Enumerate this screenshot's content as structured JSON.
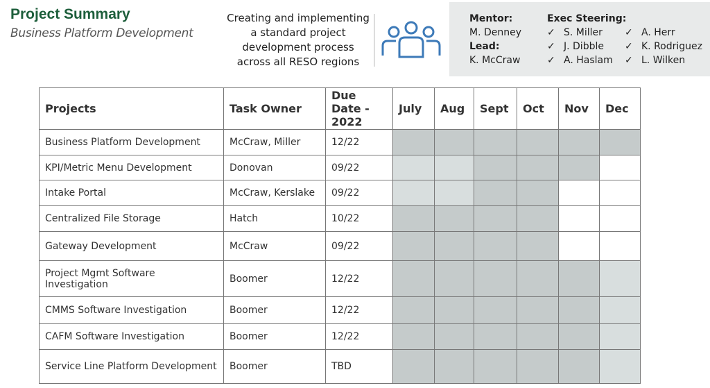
{
  "header": {
    "title": "Project Summary",
    "subtitle": "Business Platform Development",
    "description": "Creating and implementing a standard project development process across all RESO regions"
  },
  "team": {
    "mentor_label": "Mentor:",
    "mentor": "M. Denney",
    "lead_label": "Lead:",
    "lead": "K. McCraw",
    "steering_label": "Exec Steering:",
    "check": "✓",
    "steering": [
      "S. Miller",
      "A. Herr",
      "J. Dibble",
      "K. Rodriguez",
      "A. Haslam",
      "L. Wilken"
    ]
  },
  "table": {
    "columns": [
      "Projects",
      "Task Owner",
      "Due Date - 2022",
      "July",
      "Aug",
      "Sept",
      "Oct",
      "Nov",
      "Dec"
    ],
    "rows": [
      [
        "Business Platform Development",
        "McCraw, Miller",
        "12/22"
      ],
      [
        "KPI/Metric Menu Development",
        "Donovan",
        "09/22"
      ],
      [
        "Intake Portal",
        "McCraw, Kerslake",
        "09/22"
      ],
      [
        "Centralized File Storage",
        "Hatch",
        "10/22"
      ],
      [
        "Gateway Development",
        "McCraw",
        "09/22"
      ],
      [
        "Project Mgmt Software Investigation",
        "Boomer",
        "12/22"
      ],
      [
        "CMMS Software Investigation",
        "Boomer",
        "12/22"
      ],
      [
        "CAFM Software Investigation",
        "Boomer",
        "12/22"
      ],
      [
        "Service Line Platform Development",
        "Boomer",
        "TBD"
      ]
    ],
    "shading": [
      [
        "#c5cbcb",
        "#c5cbcb",
        "#c5cbcb",
        "#c5cbcb",
        "#c5cbcb",
        "#c5cbcb"
      ],
      [
        "#d8dede",
        "#d8dede",
        "#c5cbcb",
        "#c5cbcb",
        "#c5cbcb",
        "#ffffff"
      ],
      [
        "#d8dede",
        "#d8dede",
        "#c5cbcb",
        "#c5cbcb",
        "#ffffff",
        "#ffffff"
      ],
      [
        "#c5cbcb",
        "#c5cbcb",
        "#c5cbcb",
        "#c5cbcb",
        "#ffffff",
        "#ffffff"
      ],
      [
        "#c5cbcb",
        "#c5cbcb",
        "#c5cbcb",
        "#c5cbcb",
        "#ffffff",
        "#ffffff"
      ],
      [
        "#c5cbcb",
        "#c5cbcb",
        "#c5cbcb",
        "#c5cbcb",
        "#c5cbcb",
        "#d8dede"
      ],
      [
        "#c5cbcb",
        "#c5cbcb",
        "#c5cbcb",
        "#c5cbcb",
        "#c5cbcb",
        "#d8dede"
      ],
      [
        "#c5cbcb",
        "#c5cbcb",
        "#c5cbcb",
        "#c5cbcb",
        "#c5cbcb",
        "#d8dede"
      ],
      [
        "#c5cbcb",
        "#c5cbcb",
        "#c5cbcb",
        "#c5cbcb",
        "#c5cbcb",
        "#d8dede"
      ]
    ]
  }
}
